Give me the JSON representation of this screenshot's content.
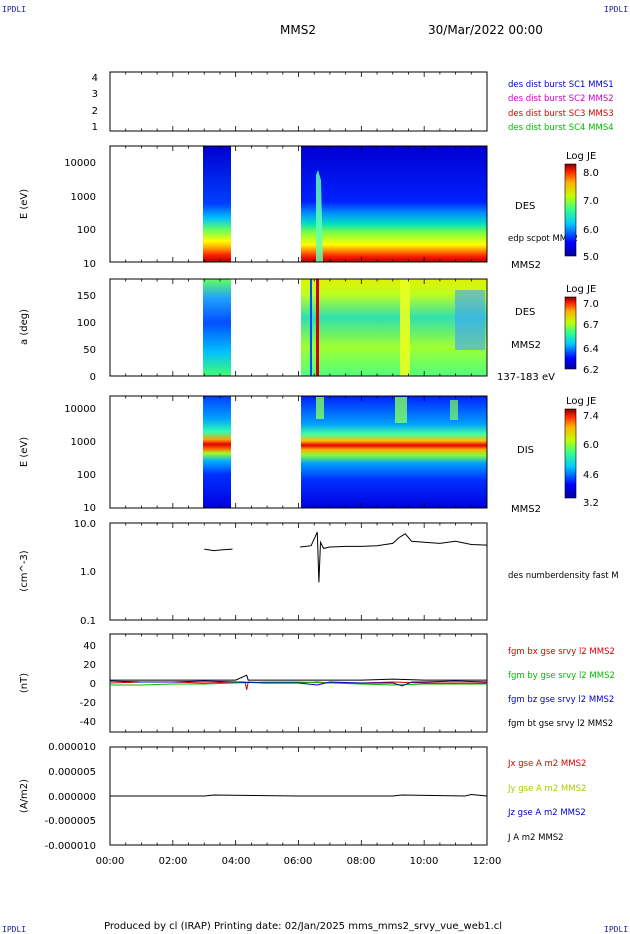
{
  "header": {
    "corner_tl": "IPDLI",
    "corner_tr": "IPDLI",
    "corner_bl": "IPDLI",
    "corner_br": "IPDLI",
    "spacecraft": "MMS2",
    "datetime": "30/Mar/2022 00:00"
  },
  "footer": {
    "produced": "Produced by cl (IRAP)   Printing date: 02/Jan/2025   mms_mms2_srvy_vue_web1.cl"
  },
  "colors": {
    "mms1": "#0000cc",
    "mms2": "#cc00cc",
    "mms3": "#dd0000",
    "mms4": "#00bb00",
    "bx": "#dd0000",
    "by": "#00bb00",
    "bz": "#0000cc",
    "bt": "#000000"
  },
  "chart_data": [
    {
      "type": "line",
      "yticks": [
        "4",
        "3",
        "2",
        "1"
      ],
      "legend": [
        {
          "name": "des dist burst SC1 MMS1",
          "color": "#0000cc"
        },
        {
          "name": "des dist burst SC2 MMS2",
          "color": "#cc00cc"
        },
        {
          "name": "des dist burst SC3 MMS3",
          "color": "#dd0000"
        },
        {
          "name": "des dist burst SC4 MMS4",
          "color": "#00bb00"
        }
      ]
    },
    {
      "type": "heatmap",
      "ylabel": "E (eV)",
      "yscale": "log",
      "yticks": [
        "10000",
        "1000",
        "100",
        "10"
      ],
      "right_labels": [
        "DES",
        "edp scpot MMS2",
        "MMS2"
      ],
      "colorbar": {
        "label": "Log JE",
        "ticks": [
          "8.0",
          "7.0",
          "6.0",
          "5.0"
        ],
        "range": [
          5.0,
          8.0
        ]
      },
      "data_intervals_hours": [
        [
          3.0,
          3.9
        ],
        [
          6.05,
          12.0
        ]
      ]
    },
    {
      "type": "heatmap",
      "ylabel": "a (deg)",
      "yticks": [
        "150",
        "100",
        "50",
        "0"
      ],
      "ylim": [
        0,
        180
      ],
      "right_labels": [
        "DES",
        "MMS2",
        "137-183 eV"
      ],
      "colorbar": {
        "label": "Log JE",
        "ticks": [
          "7.0",
          "6.7",
          "6.4",
          "6.2"
        ],
        "range": [
          6.2,
          7.0
        ]
      },
      "data_intervals_hours": [
        [
          3.0,
          3.9
        ],
        [
          6.05,
          12.0
        ]
      ]
    },
    {
      "type": "heatmap",
      "ylabel": "E (eV)",
      "yscale": "log",
      "yticks": [
        "10000",
        "1000",
        "100",
        "10"
      ],
      "right_labels": [
        "DIS",
        "MMS2"
      ],
      "colorbar": {
        "label": "Log JE",
        "ticks": [
          "7.4",
          "6.0",
          "4.6",
          "3.2"
        ],
        "range": [
          3.2,
          7.4
        ]
      },
      "data_intervals_hours": [
        [
          3.0,
          3.9
        ],
        [
          6.05,
          12.0
        ]
      ]
    },
    {
      "type": "line",
      "ylabel": "(cm^-3)",
      "yscale": "log",
      "yticks": [
        "10.0",
        "1.0",
        "0.1"
      ],
      "ylim": [
        0.1,
        10.0
      ],
      "right_labels": [
        "des numberdensity fast M"
      ],
      "series": [
        {
          "name": "des numberdensity fast M",
          "color": "#000000",
          "x": [
            3.0,
            3.3,
            3.6,
            3.9,
            6.05,
            6.4,
            6.6,
            6.65,
            6.7,
            6.8,
            7.0,
            7.5,
            8.0,
            8.5,
            9.0,
            9.2,
            9.4,
            9.6,
            10.0,
            10.5,
            11.0,
            11.5,
            12.0
          ],
          "y": [
            2.9,
            2.7,
            2.8,
            2.9,
            3.2,
            3.4,
            6.5,
            0.6,
            4.0,
            3.0,
            3.2,
            3.3,
            3.3,
            3.4,
            3.8,
            5.0,
            6.0,
            4.2,
            4.0,
            3.8,
            4.2,
            3.6,
            3.5
          ]
        }
      ]
    },
    {
      "type": "line",
      "ylabel": "(nT)",
      "yticks": [
        "40",
        "20",
        "0",
        "-20",
        "-40"
      ],
      "ylim": [
        -50,
        50
      ],
      "series": [
        {
          "name": "fgm bx gse srvy l2 MMS2",
          "color": "#dd0000",
          "x": [
            0,
            1,
            2,
            3,
            4,
            4.3,
            4.35,
            4.4,
            5,
            6,
            6.6,
            7,
            8,
            9,
            10,
            11,
            12
          ],
          "y": [
            0,
            1,
            1,
            0,
            1,
            1,
            -7,
            1,
            0,
            0,
            1,
            0,
            0,
            1,
            0,
            0,
            0
          ]
        },
        {
          "name": "fgm by gse srvy l2 MMS2",
          "color": "#00bb00",
          "x": [
            0,
            1,
            2,
            3,
            4,
            5,
            6,
            7,
            8,
            9,
            10,
            11,
            12
          ],
          "y": [
            -2,
            -2,
            -1,
            -1,
            0,
            1,
            1,
            0,
            -1,
            -2,
            -1,
            -1,
            -1
          ]
        },
        {
          "name": "fgm bz gse srvy l2 MMS2",
          "color": "#0000cc",
          "x": [
            0,
            1,
            2,
            3,
            4,
            5,
            6,
            6.6,
            7,
            8,
            9,
            9.3,
            9.6,
            10,
            11,
            12
          ],
          "y": [
            2,
            1,
            1,
            2,
            1,
            0,
            0,
            -2,
            1,
            0,
            0,
            -3,
            1,
            1,
            2,
            1
          ]
        },
        {
          "name": "fgm bt gse srvy l2 MMS2",
          "color": "#000000",
          "x": [
            0,
            1,
            2,
            3,
            4,
            4.35,
            4.4,
            5,
            6,
            7,
            8,
            9,
            10,
            11,
            12
          ],
          "y": [
            3,
            3,
            3,
            3,
            3,
            8,
            3,
            3,
            3,
            3,
            3,
            4,
            3,
            3,
            3
          ]
        }
      ]
    },
    {
      "type": "line",
      "ylabel": "(A/m2)",
      "yticks": [
        "0.000010",
        "0.000005",
        "0.000000",
        "-0.000005",
        "-0.000010"
      ],
      "ylim": [
        -1e-05,
        1e-05
      ],
      "xlabel_ticks": [
        "00:00",
        "02:00",
        "04:00",
        "06:00",
        "08:00",
        "10:00",
        "12:00"
      ],
      "series": [
        {
          "name": "Jx gse A m2 MMS2",
          "color": "#dd0000"
        },
        {
          "name": "Jy gse A m2 MMS2",
          "color": "#aacc00"
        },
        {
          "name": "Jz gse A m2 MMS2",
          "color": "#0000cc"
        },
        {
          "name": "J A m2 MMS2",
          "color": "#000000",
          "x": [
            0,
            3.0,
            3.3,
            6.0,
            9.0,
            9.3,
            11.3,
            11.5,
            12.0
          ],
          "y": [
            0,
            0,
            2e-07,
            0,
            0,
            2e-07,
            0,
            3e-07,
            0
          ]
        }
      ]
    }
  ]
}
